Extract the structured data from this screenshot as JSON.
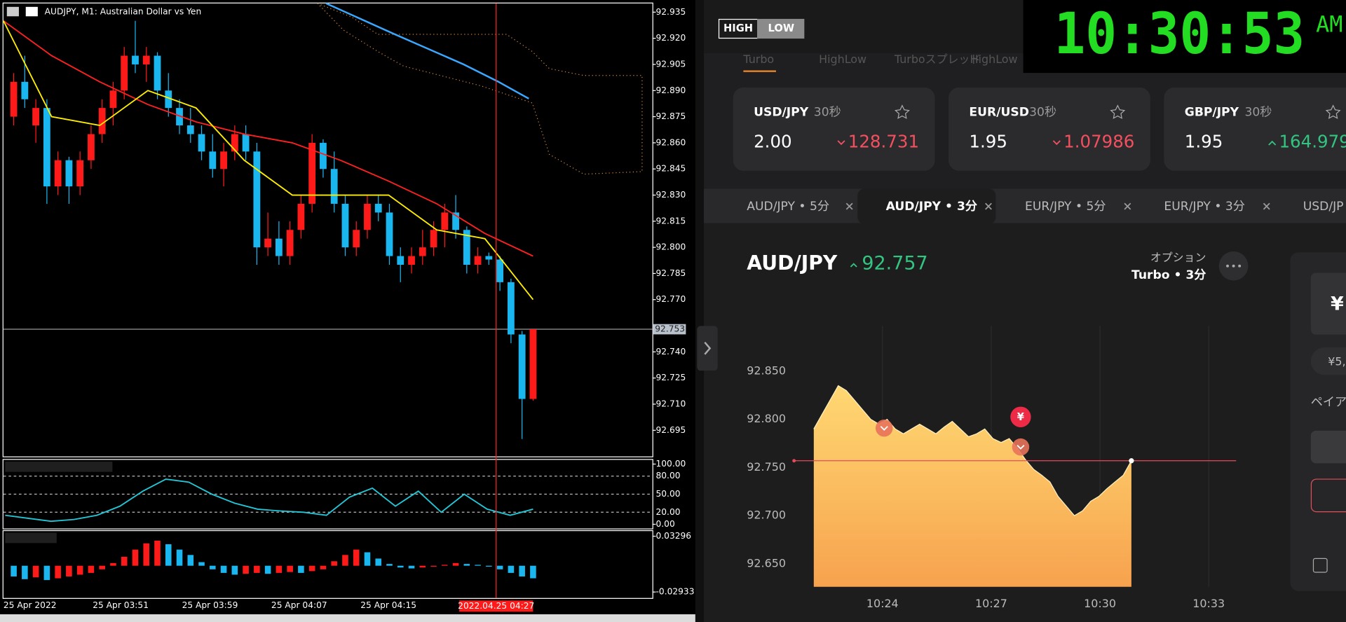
{
  "mt4": {
    "title": "AUDJPY, M1:  Australian Dollar vs Yen",
    "up_color": "#ff1a1a",
    "down_color": "#19b6f0",
    "ylim": [
      92.68,
      92.94
    ],
    "price_ticks": [
      92.935,
      {
        "value": 92.92,
        "label": "92.920"
      },
      92.905,
      {
        "value": 92.89,
        "label": "92.890"
      },
      92.875,
      {
        "value": 92.86,
        "label": "92.860"
      },
      92.845,
      {
        "value": 92.83,
        "label": "92.830"
      },
      92.815,
      {
        "value": 92.8,
        "label": "92.800"
      },
      92.785,
      {
        "value": 92.77,
        "label": "92.770"
      },
      {
        "value": 92.74,
        "label": "92.740"
      },
      92.725,
      {
        "value": 92.71,
        "label": "92.710"
      },
      92.695
    ],
    "current_price": 92.753,
    "candles": [
      [
        92.875,
        92.9,
        92.87,
        92.895
      ],
      [
        92.895,
        92.91,
        92.88,
        92.885
      ],
      [
        92.87,
        92.885,
        92.86,
        92.88
      ],
      [
        92.88,
        92.885,
        92.825,
        92.835
      ],
      [
        92.835,
        92.855,
        92.83,
        92.85
      ],
      [
        92.85,
        92.852,
        92.825,
        92.835
      ],
      [
        92.835,
        92.855,
        92.83,
        92.85
      ],
      [
        92.85,
        92.87,
        92.845,
        92.865
      ],
      [
        92.865,
        92.885,
        92.86,
        92.88
      ],
      [
        92.88,
        92.895,
        92.87,
        92.89
      ],
      [
        92.89,
        92.915,
        92.885,
        92.91
      ],
      [
        92.91,
        92.93,
        92.9,
        92.905
      ],
      [
        92.905,
        92.915,
        92.895,
        92.91
      ],
      [
        92.91,
        92.912,
        92.885,
        92.89
      ],
      [
        92.89,
        92.9,
        92.875,
        92.88
      ],
      [
        92.88,
        92.885,
        92.865,
        92.87
      ],
      [
        92.87,
        92.88,
        92.86,
        92.865
      ],
      [
        92.865,
        92.87,
        92.85,
        92.855
      ],
      [
        92.855,
        92.865,
        92.84,
        92.845
      ],
      [
        92.845,
        92.86,
        92.835,
        92.855
      ],
      [
        92.855,
        92.87,
        92.85,
        92.865
      ],
      [
        92.865,
        92.87,
        92.85,
        92.855
      ],
      [
        92.855,
        92.86,
        92.79,
        92.8
      ],
      [
        92.8,
        92.82,
        92.795,
        92.805
      ],
      [
        92.805,
        92.815,
        92.79,
        92.795
      ],
      [
        92.795,
        92.815,
        92.79,
        92.81
      ],
      [
        92.81,
        92.83,
        92.805,
        92.825
      ],
      [
        92.825,
        92.865,
        92.82,
        92.86
      ],
      [
        92.86,
        92.862,
        92.84,
        92.845
      ],
      [
        92.845,
        92.855,
        92.82,
        92.825
      ],
      [
        92.825,
        92.83,
        92.795,
        92.8
      ],
      [
        92.8,
        92.815,
        92.795,
        92.81
      ],
      [
        92.81,
        92.83,
        92.805,
        92.825
      ],
      [
        92.825,
        92.83,
        92.815,
        92.82
      ],
      [
        92.82,
        92.825,
        92.79,
        92.795
      ],
      [
        92.795,
        92.8,
        92.78,
        92.79
      ],
      [
        92.79,
        92.8,
        92.785,
        92.795
      ],
      [
        92.795,
        92.81,
        92.79,
        92.8
      ],
      [
        92.8,
        92.815,
        92.795,
        92.81
      ],
      [
        92.81,
        92.825,
        92.8,
        92.82
      ],
      [
        92.82,
        92.83,
        92.805,
        92.81
      ],
      [
        92.81,
        92.812,
        92.785,
        92.79
      ],
      [
        92.79,
        92.8,
        92.785,
        92.795
      ],
      [
        92.795,
        92.797,
        92.79,
        92.793
      ],
      [
        92.793,
        92.795,
        92.775,
        92.78
      ],
      [
        92.78,
        92.782,
        92.745,
        92.75
      ],
      [
        92.75,
        92.752,
        92.69,
        92.713
      ],
      [
        92.713,
        92.753,
        92.712,
        92.753
      ]
    ],
    "ma_red": [
      92.93,
      92.91,
      92.895,
      92.882,
      92.872,
      92.865,
      92.86,
      92.85,
      92.838,
      92.825,
      92.808,
      92.795
    ],
    "ma_yellow": [
      92.93,
      92.875,
      92.87,
      92.89,
      92.88,
      92.85,
      92.83,
      92.83,
      92.83,
      92.81,
      92.805,
      92.77
    ],
    "stoch_ylim": [
      -7,
      107
    ],
    "stoch_ticks": [
      {
        "value": 100,
        "label": "100.00"
      },
      {
        "value": 80,
        "label": "80.00"
      },
      {
        "value": 50,
        "label": "50.00"
      },
      {
        "value": 20,
        "label": "20.00"
      },
      {
        "value": 0,
        "label": "0.00"
      }
    ],
    "stoch": [
      15,
      10,
      5,
      8,
      15,
      30,
      55,
      75,
      70,
      50,
      35,
      25,
      22,
      20,
      15,
      45,
      60,
      30,
      55,
      20,
      50,
      25,
      15,
      25
    ],
    "macd_ylim": [
      -0.036,
      0.0387
    ],
    "macd_ticks": [
      0.03296,
      -0.02933
    ],
    "macd": [
      -0.012,
      -0.015,
      -0.013,
      -0.016,
      -0.014,
      -0.012,
      -0.01,
      -0.008,
      -0.004,
      0.003,
      0.01,
      0.018,
      0.025,
      0.028,
      0.024,
      0.018,
      0.012,
      0.004,
      -0.004,
      -0.008,
      -0.01,
      -0.009,
      -0.008,
      -0.009,
      -0.008,
      -0.007,
      -0.008,
      -0.006,
      -0.004,
      0.005,
      0.012,
      0.018,
      0.015,
      0.008,
      0.002,
      -0.002,
      -0.003,
      -0.002,
      -0.001,
      0.001,
      0.003,
      0.002,
      0.001,
      -0.001,
      -0.004,
      -0.008,
      -0.012,
      -0.014
    ],
    "time_labels": [
      "25 Apr 2022",
      "25 Apr 03:51",
      "25 Apr 03:59",
      "25 Apr 04:07",
      "25 Apr 04:15"
    ],
    "cursor_time": "2022.04.25 04:27"
  },
  "highlow": {
    "logo": [
      "HIGH",
      "LOW"
    ],
    "clock": "10:30:53",
    "clock_suffix": "AM",
    "nav_tabs": [
      "Turbo",
      "HighLow",
      "Turboスプレッド",
      "HighLow"
    ],
    "cards": [
      {
        "pair": "USD/JPY",
        "duration": "30秒",
        "payout": "2.00",
        "price": "128.731",
        "direction": "down"
      },
      {
        "pair": "EUR/USD",
        "duration": "30秒",
        "payout": "1.95",
        "price": "1.07986",
        "direction": "down"
      },
      {
        "pair": "GBP/JPY",
        "duration": "30秒",
        "payout": "1.95",
        "price": "164.979",
        "direction": "up"
      }
    ],
    "tabs": [
      "AUD/JPY • 5分",
      "AUD/JPY • 3分",
      "EUR/JPY • 5分",
      "EUR/JPY • 3分",
      "USD/JP"
    ],
    "active_tab": 1,
    "asset": "AUD/JPY",
    "asset_price": "92.757",
    "option_label": "オプション",
    "option_value": "Turbo • 3分",
    "chart": {
      "ylim": [
        92.626,
        92.897
      ],
      "yticks": [
        {
          "value": 92.85,
          "label": "92.850"
        },
        {
          "value": 92.8,
          "label": "92.800"
        },
        {
          "value": 92.75,
          "label": "92.750"
        },
        {
          "value": 92.7,
          "label": "92.700"
        },
        {
          "value": 92.65,
          "label": "92.650"
        }
      ],
      "x_labels": [
        "10:24",
        "10:27",
        "10:30",
        "10:33"
      ],
      "values": [
        92.79,
        92.805,
        92.82,
        92.835,
        92.83,
        92.82,
        92.81,
        92.8,
        92.795,
        92.8,
        92.79,
        92.785,
        92.79,
        92.795,
        92.79,
        92.785,
        92.792,
        92.798,
        92.79,
        92.782,
        92.785,
        92.79,
        92.78,
        92.776,
        92.78,
        92.77,
        92.758,
        92.748,
        92.742,
        92.735,
        92.72,
        92.71,
        92.7,
        92.705,
        92.715,
        92.72,
        92.728,
        92.735,
        92.742,
        92.757
      ],
      "strike": 92.757,
      "marker_label": "¥"
    },
    "side_panel": [
      "¥",
      "¥5,",
      "ペイア"
    ]
  }
}
